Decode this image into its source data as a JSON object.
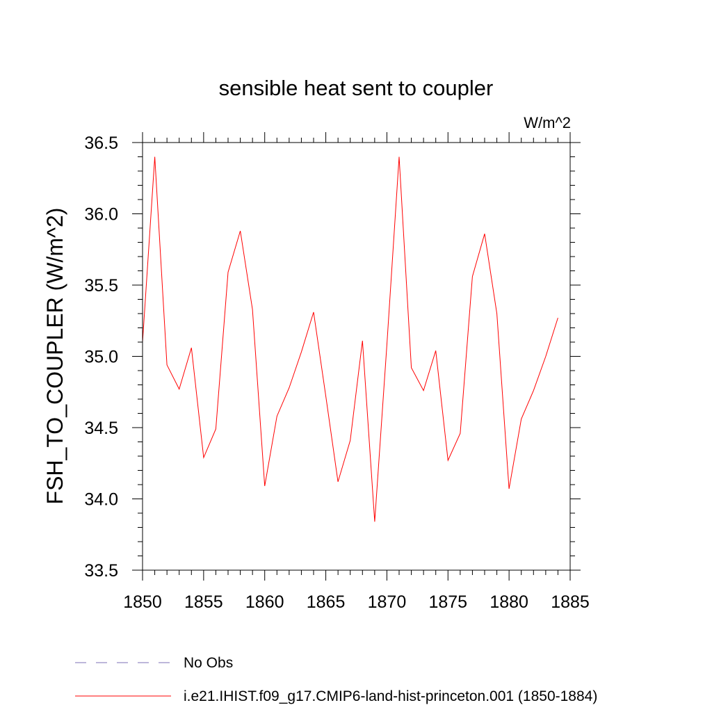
{
  "chart_data": {
    "type": "line",
    "title": "sensible heat sent to coupler",
    "units_label": "W/m^2",
    "ylabel": "FSH_TO_COUPLER  (W/m^2)",
    "xlabel": "",
    "xlim": [
      1850,
      1885
    ],
    "ylim": [
      33.5,
      36.5
    ],
    "xticks": [
      "1850",
      "1855",
      "1860",
      "1865",
      "1870",
      "1875",
      "1880",
      "1885"
    ],
    "yticks": [
      "33.5",
      "34.0",
      "34.5",
      "35.0",
      "35.5",
      "36.0",
      "36.5"
    ],
    "grid": false,
    "legend_position": "bottom-left",
    "series": [
      {
        "name": "No Obs",
        "color": "#7b6fb4",
        "style": "dashed",
        "x": [],
        "y": []
      },
      {
        "name": "i.e21.IHIST.f09_g17.CMIP6-land-hist-princeton.001 (1850-1884)",
        "color": "#ff0000",
        "style": "solid",
        "x": [
          1850,
          1851,
          1852,
          1853,
          1854,
          1855,
          1856,
          1857,
          1858,
          1859,
          1860,
          1861,
          1862,
          1863,
          1864,
          1865,
          1866,
          1867,
          1868,
          1869,
          1870,
          1871,
          1872,
          1873,
          1874,
          1875,
          1876,
          1877,
          1878,
          1879,
          1880,
          1881,
          1882,
          1883,
          1884
        ],
        "y": [
          35.1,
          36.4,
          34.94,
          34.77,
          35.06,
          34.29,
          34.49,
          35.59,
          35.88,
          35.33,
          34.09,
          34.58,
          34.78,
          35.03,
          35.31,
          34.72,
          34.12,
          34.41,
          35.11,
          33.84,
          35.08,
          36.4,
          34.92,
          34.76,
          35.04,
          34.27,
          34.46,
          35.56,
          35.86,
          35.3,
          34.07,
          34.56,
          34.76,
          35.0,
          35.27
        ]
      }
    ]
  }
}
